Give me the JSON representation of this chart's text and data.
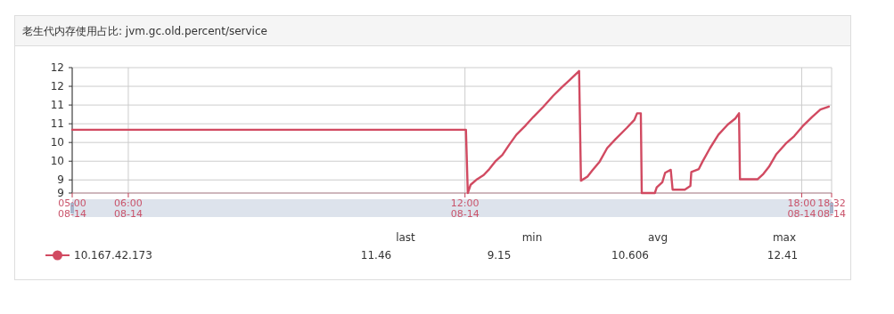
{
  "chart_data": {
    "type": "line",
    "title": "老生代内存使用占比: jvm.gc.old.percent/service",
    "x": [
      "--08-14T05:00",
      "--08-14T12:01",
      "--08-14T12:03",
      "--08-14T12:06",
      "--08-14T12:13",
      "--08-14T12:20",
      "--08-14T12:26",
      "--08-14T12:33",
      "--08-14T12:40",
      "--08-14T12:47",
      "--08-14T12:55",
      "--08-14T13:05",
      "--08-14T13:13",
      "--08-14T13:24",
      "--08-14T13:34",
      "--08-14T13:43",
      "--08-14T13:52",
      "--08-14T14:02",
      "--08-14T14:04",
      "--08-14T14:11",
      "--08-14T14:16",
      "--08-14T14:24",
      "--08-14T14:32",
      "--08-14T14:41",
      "--08-14T14:53",
      "--08-14T15:01",
      "--08-14T15:04",
      "--08-14T15:08",
      "--08-14T15:09",
      "--08-14T15:23",
      "--08-14T15:25",
      "--08-14T15:31",
      "--08-14T15:34",
      "--08-14T15:40",
      "--08-14T15:42",
      "--08-14T15:55",
      "--08-14T16:01",
      "--08-14T16:02",
      "--08-14T16:10",
      "--08-14T16:14",
      "--08-14T16:22",
      "--08-14T16:31",
      "--08-14T16:41",
      "--08-14T16:49",
      "--08-14T16:53",
      "--08-14T16:54",
      "--08-14T17:13",
      "--08-14T17:19",
      "--08-14T17:25",
      "--08-14T17:33",
      "--08-14T17:43",
      "--08-14T17:52",
      "--08-14T18:02",
      "--08-14T18:11",
      "--08-14T18:20",
      "--08-14T18:29"
    ],
    "series": [
      {
        "name": "10.167.42.173",
        "color": "#d14a61",
        "values": [
          10.84,
          10.84,
          9.15,
          9.37,
          9.52,
          9.63,
          9.79,
          10.01,
          10.17,
          10.43,
          10.71,
          10.96,
          11.18,
          11.46,
          11.74,
          11.96,
          12.17,
          12.41,
          9.48,
          9.59,
          9.75,
          9.99,
          10.35,
          10.59,
          10.89,
          11.1,
          11.28,
          11.28,
          9.15,
          9.15,
          9.3,
          9.44,
          9.69,
          9.77,
          9.24,
          9.24,
          9.34,
          9.71,
          9.79,
          9.99,
          10.35,
          10.71,
          10.98,
          11.14,
          11.28,
          9.52,
          9.52,
          9.66,
          9.85,
          10.19,
          10.47,
          10.67,
          10.96,
          11.18,
          11.38,
          11.46
        ]
      }
    ],
    "xlim": [
      "--08-14T05:00",
      "--08-14T18:32"
    ],
    "xticks": [
      {
        "value": "--08-14T05:00",
        "label": "05:00\n08-14"
      },
      {
        "value": "--08-14T06:00",
        "label": "06:00\n08-14"
      },
      {
        "value": "--08-14T12:00",
        "label": "12:00\n08-14"
      },
      {
        "value": "--08-14T18:00",
        "label": "18:00\n08-14"
      },
      {
        "value": "--08-14T18:32",
        "label": "18:32\n08-14"
      }
    ],
    "ylim": [
      9.15,
      12.5
    ],
    "yticks": [
      {
        "value": 9.15,
        "label": "9"
      },
      {
        "value": 9.5,
        "label": "9"
      },
      {
        "value": 10,
        "label": "10"
      },
      {
        "value": 10.5,
        "label": "10"
      },
      {
        "value": 11,
        "label": "11"
      },
      {
        "value": 11.5,
        "label": "11"
      },
      {
        "value": 12,
        "label": "12"
      },
      {
        "value": 12.5,
        "label": "12"
      }
    ],
    "grid": true,
    "legend": "bottom",
    "marker": "none",
    "line_style": "solid",
    "annotations": [
      "last",
      "min",
      "avg",
      "max",
      "11.46",
      "9.15",
      "10.606",
      "12.41"
    ]
  }
}
